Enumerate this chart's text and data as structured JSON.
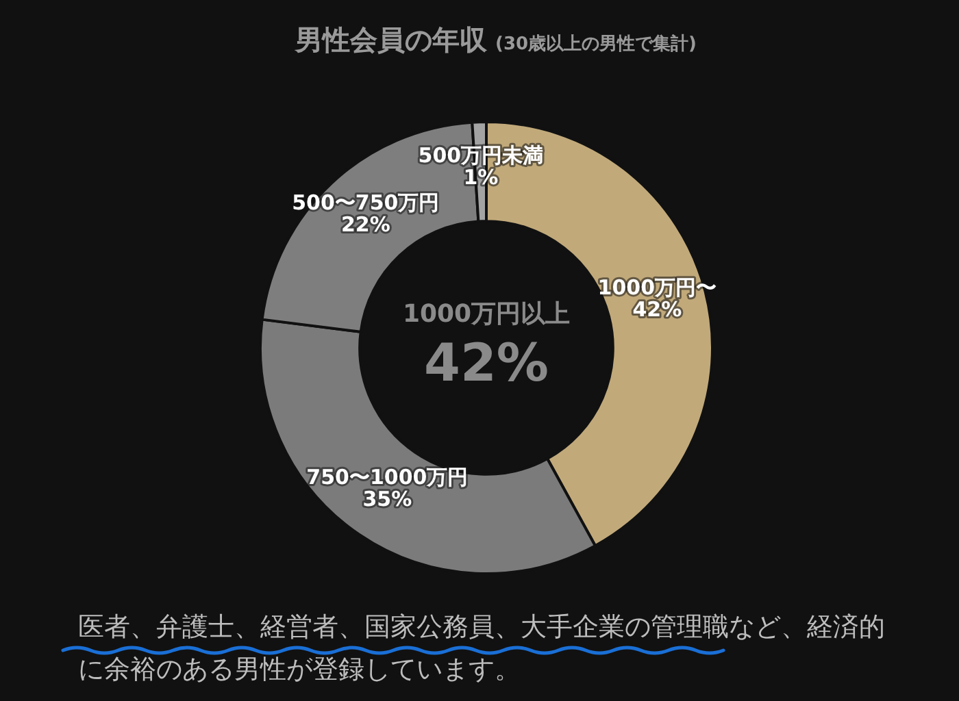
{
  "chart_data": {
    "type": "donut",
    "title": "男性会員の年収",
    "subtitle": "(30歳以上の男性で集計)",
    "categories": [
      "1000万円〜",
      "750〜1000万円",
      "500〜750万円",
      "500万円未満"
    ],
    "values": [
      42,
      35,
      22,
      1
    ],
    "value_labels": [
      "42%",
      "35%",
      "22%",
      "1%"
    ],
    "colors": [
      "#c1a97a",
      "#7b7b7b",
      "#7e7e7e",
      "#a3a3a3"
    ],
    "annotations": [
      "1000万円以上",
      "42%",
      "医者、弁護士、経営者、国家公務員、大手企業の管理職など、経済的に余裕のある男性が登録しています。"
    ]
  }
}
